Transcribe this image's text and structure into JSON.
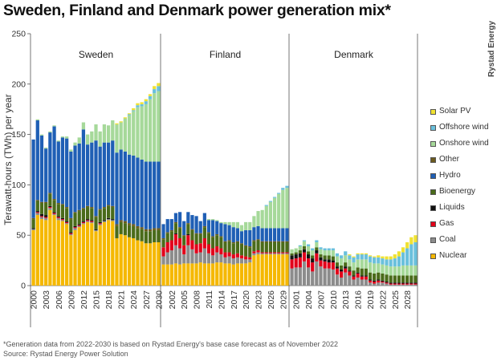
{
  "title": "Sweden, Finland and Denmark power generation mix*",
  "brand": "Rystad Energy",
  "footnote": "*Generation data from 2022-2030 is based on Rystad Energy's base case forecast as of November 2022",
  "source": "Source: Rystad Energy Power Solution",
  "colors": {
    "Nuclear": "#f5b800",
    "Coal": "#8c8c8c",
    "Gas": "#e2001a",
    "Liquids": "#111111",
    "Bioenergy": "#4a6b1a",
    "Hydro": "#1f5fb5",
    "Other": "#6b5a1e",
    "Onshore wind": "#a6d99a",
    "Offshore wind": "#6ac0dc",
    "Solar PV": "#f0e232"
  },
  "legend": [
    "Solar PV",
    "Offshore wind",
    "Onshore wind",
    "Other",
    "Hydro",
    "Bioenergy",
    "Liquids",
    "Gas",
    "Coal",
    "Nuclear"
  ],
  "chart_data": {
    "type": "bar",
    "stacked": true,
    "ylabel": "Terawatt-hours (TWh) per year",
    "ylim": [
      0,
      250
    ],
    "yticks": [
      0,
      50,
      100,
      150,
      200,
      250
    ],
    "series_order": [
      "Nuclear",
      "Coal",
      "Gas",
      "Liquids",
      "Bioenergy",
      "Other",
      "Hydro",
      "Onshore wind",
      "Offshore wind",
      "Solar PV"
    ],
    "panels": [
      {
        "name": "Sweden",
        "x": [
          2000,
          2001,
          2002,
          2003,
          2004,
          2005,
          2006,
          2007,
          2008,
          2009,
          2010,
          2011,
          2012,
          2013,
          2014,
          2015,
          2016,
          2017,
          2018,
          2019,
          2020,
          2021,
          2022,
          2023,
          2024,
          2025,
          2026,
          2027,
          2028,
          2029,
          2030
        ],
        "tick_labels": [
          "2000",
          "2003",
          "2006",
          "2009",
          "2012",
          "2015",
          "2018",
          "2021",
          "2024",
          "2027",
          "2030"
        ],
        "series": {
          "Nuclear": [
            55,
            70,
            66,
            65,
            75,
            70,
            65,
            64,
            61,
            50,
            55,
            58,
            61,
            63,
            62,
            54,
            60,
            63,
            65,
            64,
            47,
            51,
            50,
            48,
            47,
            45,
            44,
            42,
            42,
            43,
            43
          ],
          "Coal": [
            1,
            2,
            2,
            2,
            2,
            1,
            2,
            1,
            1,
            1,
            2,
            1,
            1,
            1,
            1,
            1,
            1,
            1,
            1,
            1,
            0,
            0,
            0,
            0,
            0,
            0,
            0,
            0,
            0,
            0,
            0
          ],
          "Gas": [
            0,
            1,
            1,
            1,
            1,
            1,
            1,
            1,
            1,
            1,
            1,
            1,
            1,
            1,
            1,
            0,
            1,
            0,
            0,
            0,
            0,
            0,
            0,
            0,
            0,
            0,
            0,
            0,
            0,
            0,
            0
          ],
          "Liquids": [
            1,
            1,
            2,
            2,
            1,
            1,
            1,
            1,
            1,
            1,
            1,
            1,
            1,
            1,
            1,
            1,
            1,
            1,
            1,
            1,
            0,
            0,
            0,
            0,
            0,
            0,
            0,
            0,
            0,
            0,
            0
          ],
          "Bioenergy": [
            9,
            10,
            11,
            12,
            12,
            12,
            12,
            13,
            13,
            13,
            13,
            13,
            12,
            12,
            12,
            12,
            12,
            12,
            12,
            12,
            12,
            12,
            12,
            12,
            12,
            12,
            12,
            12,
            12,
            12,
            12
          ],
          "Other": [
            1,
            1,
            1,
            1,
            1,
            1,
            1,
            1,
            1,
            1,
            1,
            1,
            1,
            1,
            1,
            1,
            1,
            1,
            1,
            1,
            2,
            2,
            2,
            2,
            2,
            2,
            2,
            2,
            2,
            2,
            2
          ],
          "Hydro": [
            78,
            79,
            66,
            53,
            60,
            72,
            61,
            66,
            68,
            66,
            66,
            66,
            78,
            61,
            64,
            75,
            62,
            64,
            62,
            65,
            71,
            70,
            69,
            68,
            68,
            68,
            67,
            67,
            67,
            66,
            66
          ],
          "Onshore wind": [
            0,
            1,
            1,
            1,
            1,
            1,
            1,
            1,
            2,
            2,
            3,
            6,
            7,
            10,
            11,
            16,
            15,
            18,
            17,
            20,
            28,
            27,
            33,
            39,
            44,
            50,
            53,
            57,
            62,
            68,
            70
          ],
          "Offshore wind": [
            0,
            0,
            0,
            0,
            0,
            0,
            0,
            0,
            0,
            0,
            0,
            0,
            0,
            0,
            0,
            0,
            0,
            0,
            0,
            0,
            0,
            0,
            0,
            1,
            1,
            2,
            2,
            3,
            3,
            4,
            5
          ],
          "Solar PV": [
            0,
            0,
            0,
            0,
            0,
            0,
            0,
            0,
            0,
            0,
            0,
            0,
            0,
            0,
            0,
            0,
            0,
            0,
            0,
            0,
            1,
            1,
            1,
            1,
            2,
            2,
            2,
            2,
            2,
            3,
            3
          ]
        }
      },
      {
        "name": "Finland",
        "x": [
          2000,
          2001,
          2002,
          2003,
          2004,
          2005,
          2006,
          2007,
          2008,
          2009,
          2010,
          2011,
          2012,
          2013,
          2014,
          2015,
          2016,
          2017,
          2018,
          2019,
          2020,
          2021,
          2022,
          2023,
          2024,
          2025,
          2026,
          2027,
          2028,
          2029,
          2030
        ],
        "tick_labels": [
          "2002",
          "2005",
          "2008",
          "2011",
          "2014",
          "2017",
          "2020",
          "2023",
          "2026",
          "2029"
        ],
        "series": {
          "Nuclear": [
            21,
            21,
            21,
            22,
            21,
            22,
            22,
            22,
            22,
            23,
            22,
            22,
            22,
            23,
            23,
            22,
            22,
            21,
            22,
            22,
            22,
            23,
            30,
            31,
            31,
            31,
            31,
            31,
            31,
            31,
            31
          ],
          "Coal": [
            8,
            12,
            14,
            18,
            16,
            9,
            18,
            14,
            10,
            10,
            15,
            10,
            8,
            10,
            8,
            6,
            7,
            6,
            6,
            5,
            4,
            3,
            2,
            2,
            1,
            1,
            1,
            1,
            1,
            1,
            1
          ],
          "Gas": [
            9,
            10,
            10,
            11,
            10,
            9,
            10,
            9,
            9,
            9,
            10,
            9,
            7,
            6,
            6,
            5,
            4,
            4,
            4,
            3,
            3,
            2,
            2,
            2,
            1,
            1,
            1,
            1,
            1,
            1,
            1
          ],
          "Liquids": [
            0,
            0,
            0,
            1,
            0,
            0,
            1,
            0,
            0,
            0,
            0,
            0,
            0,
            0,
            0,
            0,
            0,
            0,
            0,
            0,
            0,
            0,
            0,
            0,
            0,
            0,
            0,
            0,
            0,
            0,
            0
          ],
          "Bioenergy": [
            8,
            9,
            9,
            10,
            10,
            9,
            10,
            10,
            10,
            9,
            11,
            11,
            11,
            11,
            11,
            10,
            11,
            11,
            11,
            11,
            10,
            10,
            10,
            10,
            10,
            10,
            10,
            10,
            10,
            10,
            10
          ],
          "Other": [
            1,
            1,
            1,
            1,
            1,
            1,
            1,
            1,
            1,
            1,
            1,
            1,
            1,
            1,
            1,
            1,
            1,
            1,
            1,
            1,
            1,
            1,
            1,
            1,
            1,
            1,
            1,
            1,
            1,
            1,
            1
          ],
          "Hydro": [
            14,
            13,
            11,
            9,
            15,
            14,
            11,
            14,
            17,
            12,
            13,
            12,
            16,
            13,
            13,
            17,
            15,
            15,
            13,
            12,
            15,
            16,
            13,
            13,
            13,
            13,
            13,
            13,
            13,
            13,
            13
          ],
          "Onshore wind": [
            0,
            0,
            0,
            0,
            0,
            0,
            0,
            0,
            0,
            0,
            0,
            1,
            1,
            1,
            1,
            2,
            3,
            5,
            6,
            6,
            8,
            8,
            11,
            15,
            18,
            22,
            26,
            30,
            34,
            38,
            40
          ],
          "Offshore wind": [
            0,
            0,
            0,
            0,
            0,
            0,
            0,
            0,
            0,
            0,
            0,
            0,
            0,
            0,
            0,
            0,
            0,
            0,
            0,
            0,
            0,
            0,
            0,
            0,
            0,
            1,
            1,
            1,
            1,
            2,
            2
          ],
          "Solar PV": [
            0,
            0,
            0,
            0,
            0,
            0,
            0,
            0,
            0,
            0,
            0,
            0,
            0,
            0,
            0,
            0,
            0,
            0,
            0,
            0,
            0,
            0,
            0,
            0,
            0,
            0,
            0,
            0,
            0,
            0,
            0
          ]
        }
      },
      {
        "name": "Denmark",
        "x": [
          2000,
          2001,
          2002,
          2003,
          2004,
          2005,
          2006,
          2007,
          2008,
          2009,
          2010,
          2011,
          2012,
          2013,
          2014,
          2015,
          2016,
          2017,
          2018,
          2019,
          2020,
          2021,
          2022,
          2023,
          2024,
          2025,
          2026,
          2027,
          2028,
          2029,
          2030
        ],
        "tick_labels": [
          "2001",
          "2004",
          "2007",
          "2010",
          "2013",
          "2016",
          "2019",
          "2022",
          "2025",
          "2028"
        ],
        "series": {
          "Nuclear": [
            0,
            0,
            0,
            0,
            0,
            0,
            0,
            0,
            0,
            0,
            0,
            0,
            0,
            0,
            0,
            0,
            0,
            0,
            0,
            0,
            0,
            0,
            0,
            0,
            0,
            0,
            0,
            0,
            0,
            0,
            0
          ],
          "Coal": [
            17,
            18,
            18,
            24,
            18,
            14,
            24,
            19,
            17,
            17,
            16,
            11,
            8,
            13,
            10,
            6,
            8,
            6,
            6,
            3,
            2,
            3,
            3,
            2,
            1,
            1,
            1,
            1,
            1,
            1,
            1
          ],
          "Gas": [
            9,
            9,
            10,
            9,
            9,
            9,
            8,
            6,
            7,
            6,
            7,
            6,
            6,
            4,
            4,
            3,
            4,
            3,
            3,
            2,
            2,
            2,
            1,
            1,
            1,
            1,
            1,
            1,
            1,
            1,
            1
          ],
          "Liquids": [
            4,
            4,
            4,
            3,
            4,
            4,
            3,
            3,
            2,
            3,
            2,
            2,
            2,
            2,
            1,
            1,
            1,
            1,
            1,
            1,
            1,
            1,
            1,
            1,
            1,
            1,
            1,
            1,
            1,
            1,
            1
          ],
          "Bioenergy": [
            2,
            2,
            3,
            3,
            3,
            3,
            3,
            3,
            4,
            4,
            4,
            4,
            4,
            4,
            4,
            5,
            5,
            7,
            7,
            7,
            7,
            7,
            7,
            7,
            7,
            7,
            7,
            7,
            7,
            7,
            7
          ],
          "Other": [
            0,
            0,
            0,
            0,
            0,
            0,
            0,
            0,
            0,
            0,
            0,
            0,
            0,
            0,
            0,
            0,
            0,
            0,
            0,
            0,
            0,
            0,
            0,
            0,
            0,
            0,
            0,
            0,
            0,
            0,
            0
          ],
          "Hydro": [
            0,
            0,
            0,
            0,
            0,
            0,
            0,
            0,
            0,
            0,
            0,
            0,
            0,
            0,
            0,
            0,
            0,
            0,
            0,
            0,
            0,
            0,
            0,
            0,
            0,
            0,
            0,
            0,
            0,
            0,
            0
          ],
          "Onshore wind": [
            4,
            4,
            4,
            5,
            5,
            5,
            5,
            5,
            5,
            5,
            6,
            6,
            7,
            7,
            7,
            8,
            8,
            9,
            9,
            10,
            10,
            9,
            9,
            9,
            9,
            9,
            9,
            10,
            10,
            10,
            10
          ],
          "Offshore wind": [
            0,
            0,
            1,
            1,
            2,
            2,
            2,
            2,
            2,
            2,
            2,
            3,
            3,
            4,
            4,
            5,
            5,
            5,
            5,
            6,
            6,
            6,
            6,
            6,
            7,
            8,
            10,
            13,
            17,
            21,
            23
          ],
          "Solar PV": [
            0,
            0,
            0,
            0,
            0,
            0,
            0,
            0,
            0,
            0,
            0,
            0,
            0,
            0,
            1,
            1,
            1,
            1,
            1,
            1,
            1,
            2,
            2,
            3,
            3,
            4,
            5,
            5,
            6,
            7,
            7
          ]
        }
      }
    ]
  }
}
